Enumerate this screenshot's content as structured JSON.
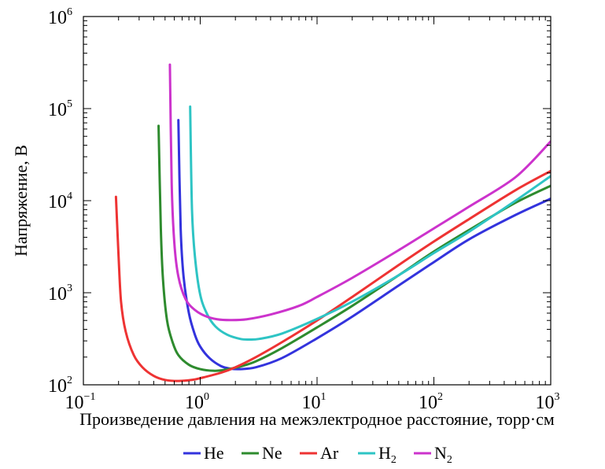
{
  "chart_data": {
    "type": "line",
    "xlabel": "Произведение давления на межэлектродное расстояние, торр·см",
    "ylabel": "Напряжение, В",
    "xscale": "log",
    "yscale": "log",
    "xlim": [
      0.1,
      1000
    ],
    "ylim": [
      100,
      1000000
    ],
    "x_ticks": [
      {
        "base": "10",
        "exp": "−1"
      },
      {
        "base": "10",
        "exp": "0"
      },
      {
        "base": "10",
        "exp": "1"
      },
      {
        "base": "10",
        "exp": "2"
      },
      {
        "base": "10",
        "exp": "3"
      }
    ],
    "y_ticks": [
      {
        "base": "10",
        "exp": "2"
      },
      {
        "base": "10",
        "exp": "3"
      },
      {
        "base": "10",
        "exp": "4"
      },
      {
        "base": "10",
        "exp": "5"
      },
      {
        "base": "10",
        "exp": "6"
      }
    ],
    "legend_position": "bottom",
    "series": [
      {
        "name": "He",
        "color": "#3333dd",
        "points": [
          [
            0.65,
            75000
          ],
          [
            0.68,
            5000
          ],
          [
            0.72,
            1500
          ],
          [
            0.8,
            600
          ],
          [
            0.9,
            350
          ],
          [
            1.0,
            260
          ],
          [
            1.2,
            195
          ],
          [
            1.5,
            160
          ],
          [
            1.8,
            150
          ],
          [
            2.2,
            148
          ],
          [
            3,
            155
          ],
          [
            5,
            195
          ],
          [
            10,
            320
          ],
          [
            20,
            550
          ],
          [
            50,
            1200
          ],
          [
            100,
            2150
          ],
          [
            200,
            3800
          ],
          [
            500,
            7000
          ],
          [
            1000,
            10500
          ]
        ]
      },
      {
        "name": "Ne",
        "color": "#2e8b2e",
        "points": [
          [
            0.44,
            65000
          ],
          [
            0.46,
            5000
          ],
          [
            0.48,
            1400
          ],
          [
            0.52,
            500
          ],
          [
            0.58,
            290
          ],
          [
            0.65,
            210
          ],
          [
            0.8,
            165
          ],
          [
            1.0,
            148
          ],
          [
            1.3,
            142
          ],
          [
            1.6,
            145
          ],
          [
            2.2,
            158
          ],
          [
            3,
            180
          ],
          [
            5,
            250
          ],
          [
            10,
            420
          ],
          [
            20,
            720
          ],
          [
            50,
            1550
          ],
          [
            100,
            2800
          ],
          [
            200,
            4800
          ],
          [
            500,
            9500
          ],
          [
            1000,
            14500
          ]
        ]
      },
      {
        "name": "Ar",
        "color": "#ee3333",
        "points": [
          [
            0.19,
            11000
          ],
          [
            0.2,
            2500
          ],
          [
            0.21,
            800
          ],
          [
            0.23,
            380
          ],
          [
            0.27,
            210
          ],
          [
            0.32,
            155
          ],
          [
            0.4,
            125
          ],
          [
            0.5,
            113
          ],
          [
            0.65,
            110
          ],
          [
            0.85,
            113
          ],
          [
            1.0,
            118
          ],
          [
            1.5,
            135
          ],
          [
            2,
            155
          ],
          [
            3,
            200
          ],
          [
            5,
            290
          ],
          [
            10,
            500
          ],
          [
            20,
            900
          ],
          [
            50,
            2000
          ],
          [
            100,
            3600
          ],
          [
            200,
            6300
          ],
          [
            500,
            13000
          ],
          [
            1000,
            21000
          ]
        ]
      },
      {
        "name": "H₂",
        "color": "#2ec4c4",
        "points": [
          [
            0.82,
            105000
          ],
          [
            0.85,
            8000
          ],
          [
            0.9,
            2500
          ],
          [
            1.0,
            950
          ],
          [
            1.15,
            580
          ],
          [
            1.35,
            430
          ],
          [
            1.7,
            350
          ],
          [
            2.2,
            315
          ],
          [
            2.6,
            310
          ],
          [
            3.2,
            315
          ],
          [
            5,
            360
          ],
          [
            10,
            520
          ],
          [
            20,
            800
          ],
          [
            50,
            1550
          ],
          [
            100,
            2700
          ],
          [
            200,
            4600
          ],
          [
            500,
            10000
          ],
          [
            1000,
            18500
          ]
        ]
      },
      {
        "name": "N₂",
        "color": "#cc33cc",
        "points": [
          [
            0.55,
            300000
          ],
          [
            0.57,
            15000
          ],
          [
            0.6,
            3500
          ],
          [
            0.65,
            1500
          ],
          [
            0.75,
            850
          ],
          [
            0.9,
            650
          ],
          [
            1.1,
            560
          ],
          [
            1.4,
            515
          ],
          [
            1.8,
            505
          ],
          [
            2.5,
            515
          ],
          [
            4,
            580
          ],
          [
            7,
            720
          ],
          [
            10,
            900
          ],
          [
            20,
            1450
          ],
          [
            50,
            2900
          ],
          [
            100,
            5000
          ],
          [
            200,
            8600
          ],
          [
            500,
            18000
          ],
          [
            1000,
            44000
          ]
        ]
      }
    ]
  }
}
